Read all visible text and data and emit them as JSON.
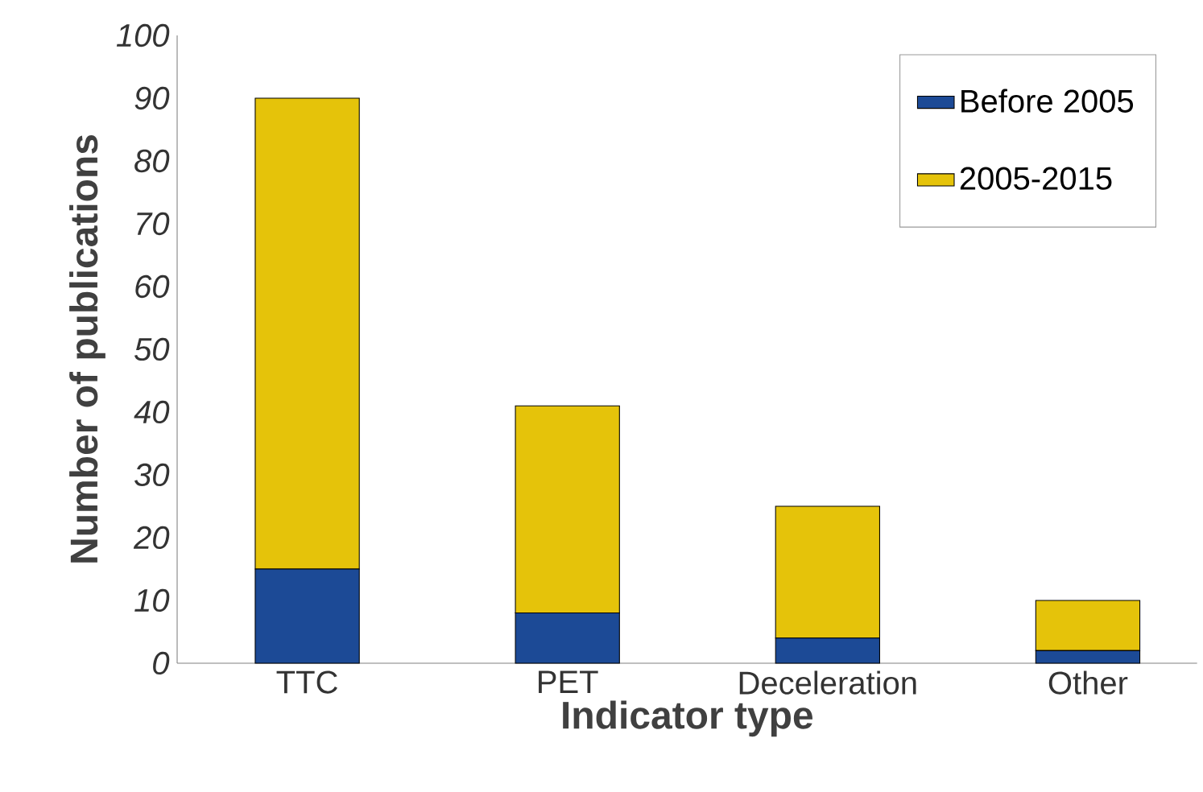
{
  "chart_data": {
    "type": "bar",
    "stacked": true,
    "xlabel": "Indicator type",
    "ylabel": "Number of publications",
    "categories": [
      "TTC",
      "PET",
      "Deceleration",
      "Other"
    ],
    "series": [
      {
        "name": "Before 2005",
        "color": "#1c4a96",
        "values": [
          15,
          8,
          4,
          2
        ]
      },
      {
        "name": "2005-2015",
        "color": "#e5c30a",
        "values": [
          75,
          33,
          21,
          8
        ]
      }
    ],
    "ylim": [
      0,
      100
    ],
    "yticks": [
      0,
      10,
      20,
      30,
      40,
      50,
      60,
      70,
      80,
      90,
      100
    ],
    "grid": false,
    "legend": "top right"
  }
}
